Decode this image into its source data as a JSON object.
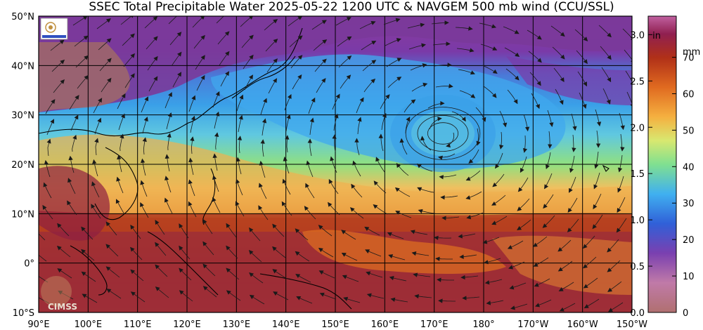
{
  "title": "SSEC Total Precipitable Water  2025-05-22 1200 UTC & NAVGEM 500 mb wind (CCU/SSL)",
  "lat_labels": [
    "50°N",
    "40°N",
    "30°N",
    "20°N",
    "10°N",
    "0°",
    "10°S"
  ],
  "lon_labels": [
    "90°E",
    "100°E",
    "110°E",
    "120°E",
    "130°E",
    "140°E",
    "150°E",
    "160°E",
    "170°E",
    "180°",
    "170°W",
    "160°W",
    "150°W"
  ],
  "colorbar": {
    "inch_unit": "in",
    "mm_unit": "mm",
    "inch_ticks": [
      "3.0",
      "2.5",
      "2.0",
      "1.5",
      "1.0",
      "0.5",
      "0.0"
    ],
    "mm_ticks": [
      "70",
      "60",
      "50",
      "40",
      "30",
      "20",
      "10",
      "0"
    ]
  },
  "logos": {
    "cimss": "CIMSS"
  },
  "colors": {
    "high_moisture": "#8b2048",
    "mid_high": "#e07020",
    "mid": "#f2c060",
    "low_mid": "#90e080",
    "low": "#3aa0e8",
    "very_low": "#7030a0",
    "streamline": "#1a1a1a"
  }
}
